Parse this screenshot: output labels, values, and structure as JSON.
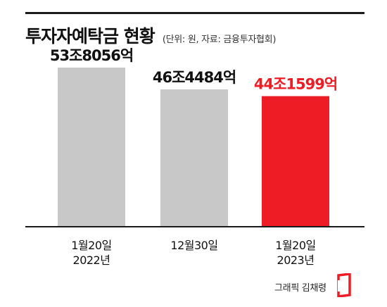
{
  "header": {
    "title": "투자자예탁금 현황",
    "subtitle": "(단위: 원, 자료: 금융투자협회)"
  },
  "chart_data": {
    "type": "bar",
    "title": "투자자예탁금 현황",
    "subtitle": "(단위: 원, 자료: 금융투자협회)",
    "categories": [
      [
        "1월20일",
        "2022년"
      ],
      [
        "12월30일"
      ],
      [
        "1월20일",
        "2023년"
      ]
    ],
    "values": [
      538056,
      464484,
      441599
    ],
    "data_labels": [
      "53조8056억",
      "46조4484억",
      "44조1599억"
    ],
    "unit": "억 원",
    "ylim": [
      0,
      600000
    ],
    "grid": false,
    "colors": [
      "#c8c8c8",
      "#c8c8c8",
      "#ee1c25"
    ],
    "label_colors": [
      "#111111",
      "#111111",
      "#ee1c25"
    ]
  },
  "footer": {
    "credit": "그래픽 김채령",
    "logo_icon": "red-bracket-logo-icon"
  }
}
